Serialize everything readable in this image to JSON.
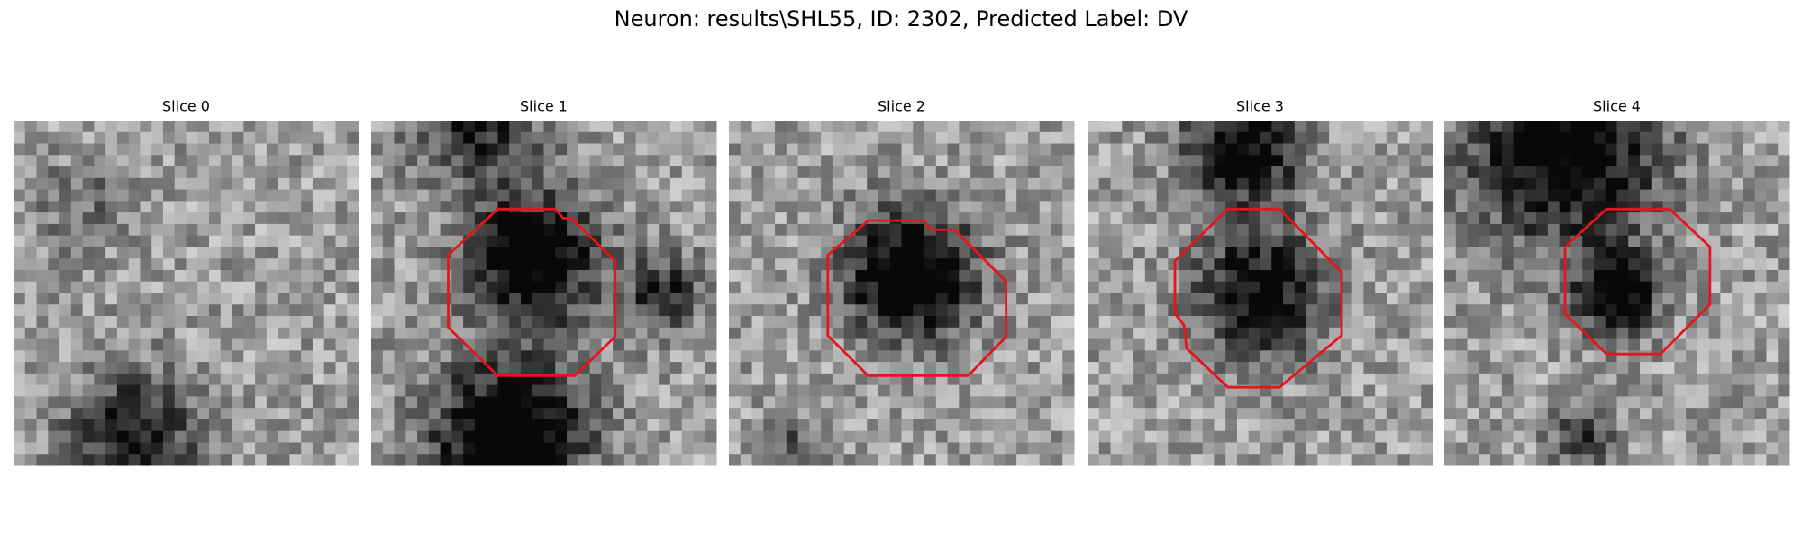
{
  "title": "Neuron: results\\SHL55, ID: 2302, Predicted Label: DV",
  "panels": [
    {
      "title": "Slice 0"
    },
    {
      "title": "Slice 1"
    },
    {
      "title": "Slice 2"
    },
    {
      "title": "Slice 3"
    },
    {
      "title": "Slice 4"
    }
  ]
}
